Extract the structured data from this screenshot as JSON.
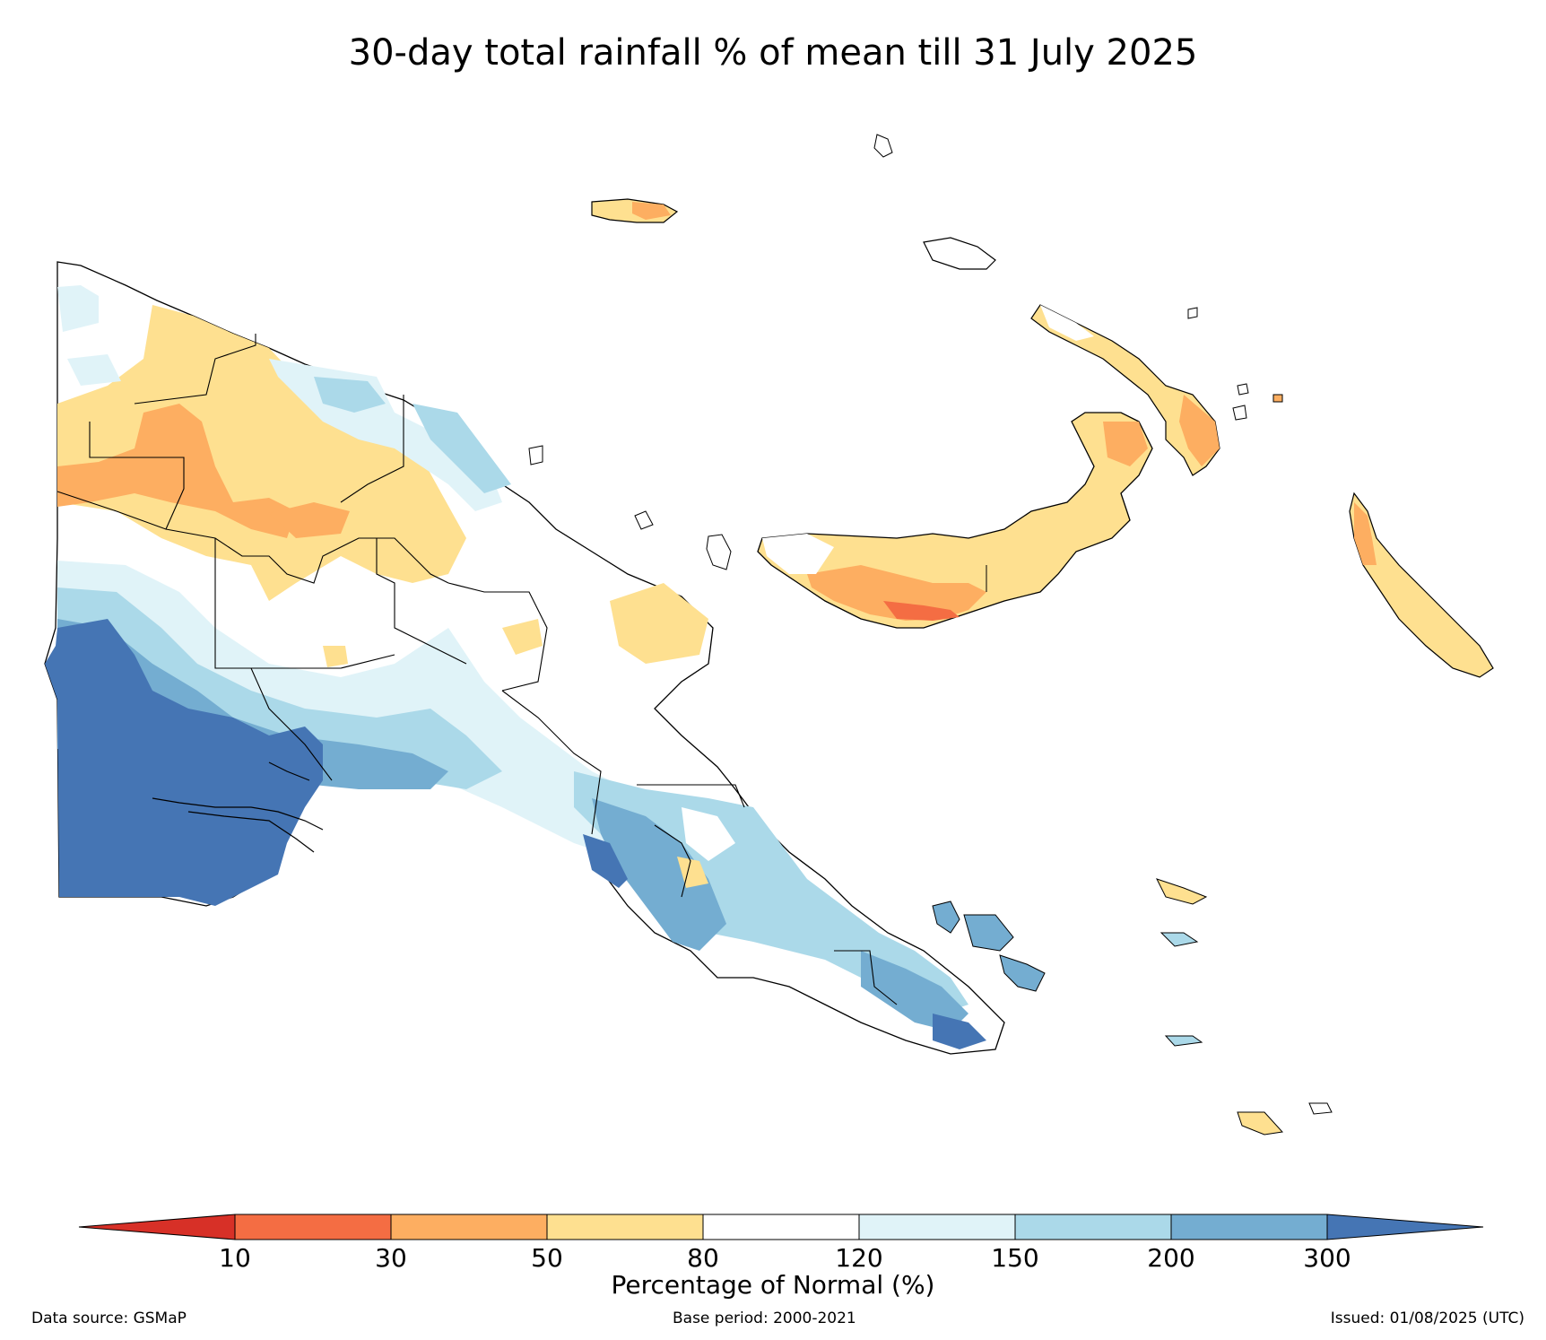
{
  "title": "30-day total rainfall % of mean till 31 July 2025",
  "colorbar": {
    "label": "Percentage of Normal (%)",
    "ticks": [
      "10",
      "30",
      "50",
      "80",
      "120",
      "150",
      "200",
      "300"
    ],
    "bins": [
      {
        "range": "<10",
        "color": "#d73027"
      },
      {
        "range": "10-30",
        "color": "#f46d43"
      },
      {
        "range": "30-50",
        "color": "#fdae61"
      },
      {
        "range": "50-80",
        "color": "#fee090"
      },
      {
        "range": "80-120",
        "color": "#ffffff"
      },
      {
        "range": "120-150",
        "color": "#e0f3f8"
      },
      {
        "range": "150-200",
        "color": "#abd9e9"
      },
      {
        "range": "200-300",
        "color": "#74add1"
      },
      {
        "range": ">300",
        "color": "#4575b4"
      }
    ]
  },
  "footer": {
    "source": "Data source: GSMaP",
    "base_period": "Base period: 2000-2021",
    "issued": "Issued: 01/08/2025 (UTC)"
  }
}
